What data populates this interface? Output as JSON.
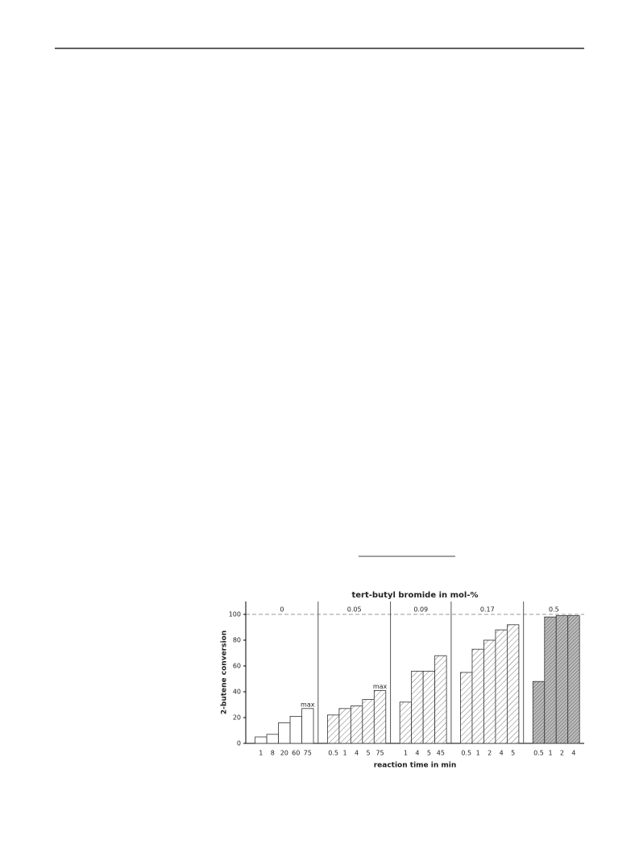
{
  "chart_data": {
    "type": "grouped-bar",
    "title": "tert-butyl bromide in mol-%",
    "x_label": "reaction time in min",
    "y_label": "2-butene conversion",
    "ylim": [
      0,
      110
    ],
    "yticks": [
      0,
      20,
      40,
      60,
      80,
      100
    ],
    "reference_line": 100,
    "groups": [
      {
        "name": "0",
        "pattern": "none",
        "categories": [
          "1",
          "8",
          "20",
          "60",
          "75"
        ],
        "values": [
          5,
          7,
          16,
          21,
          27
        ],
        "value_labels": [
          null,
          null,
          null,
          null,
          "max"
        ]
      },
      {
        "name": "0.05",
        "pattern": "hatch",
        "categories": [
          "0.5",
          "1",
          "4",
          "5",
          "75"
        ],
        "values": [
          22,
          27,
          29,
          34,
          41
        ],
        "value_labels": [
          null,
          null,
          null,
          null,
          "max"
        ]
      },
      {
        "name": "0.09",
        "pattern": "hatch",
        "categories": [
          "1",
          "4",
          "5",
          "45"
        ],
        "values": [
          32,
          56,
          56,
          68
        ]
      },
      {
        "name": "0.17",
        "pattern": "hatch",
        "categories": [
          "0.5",
          "1",
          "2",
          "4",
          "5"
        ],
        "values": [
          55,
          73,
          80,
          88,
          92
        ]
      },
      {
        "name": "0.5",
        "pattern": "dense-hatch",
        "categories": [
          "0.5",
          "1",
          "2",
          "4"
        ],
        "values": [
          48,
          98,
          99,
          99
        ]
      }
    ]
  }
}
